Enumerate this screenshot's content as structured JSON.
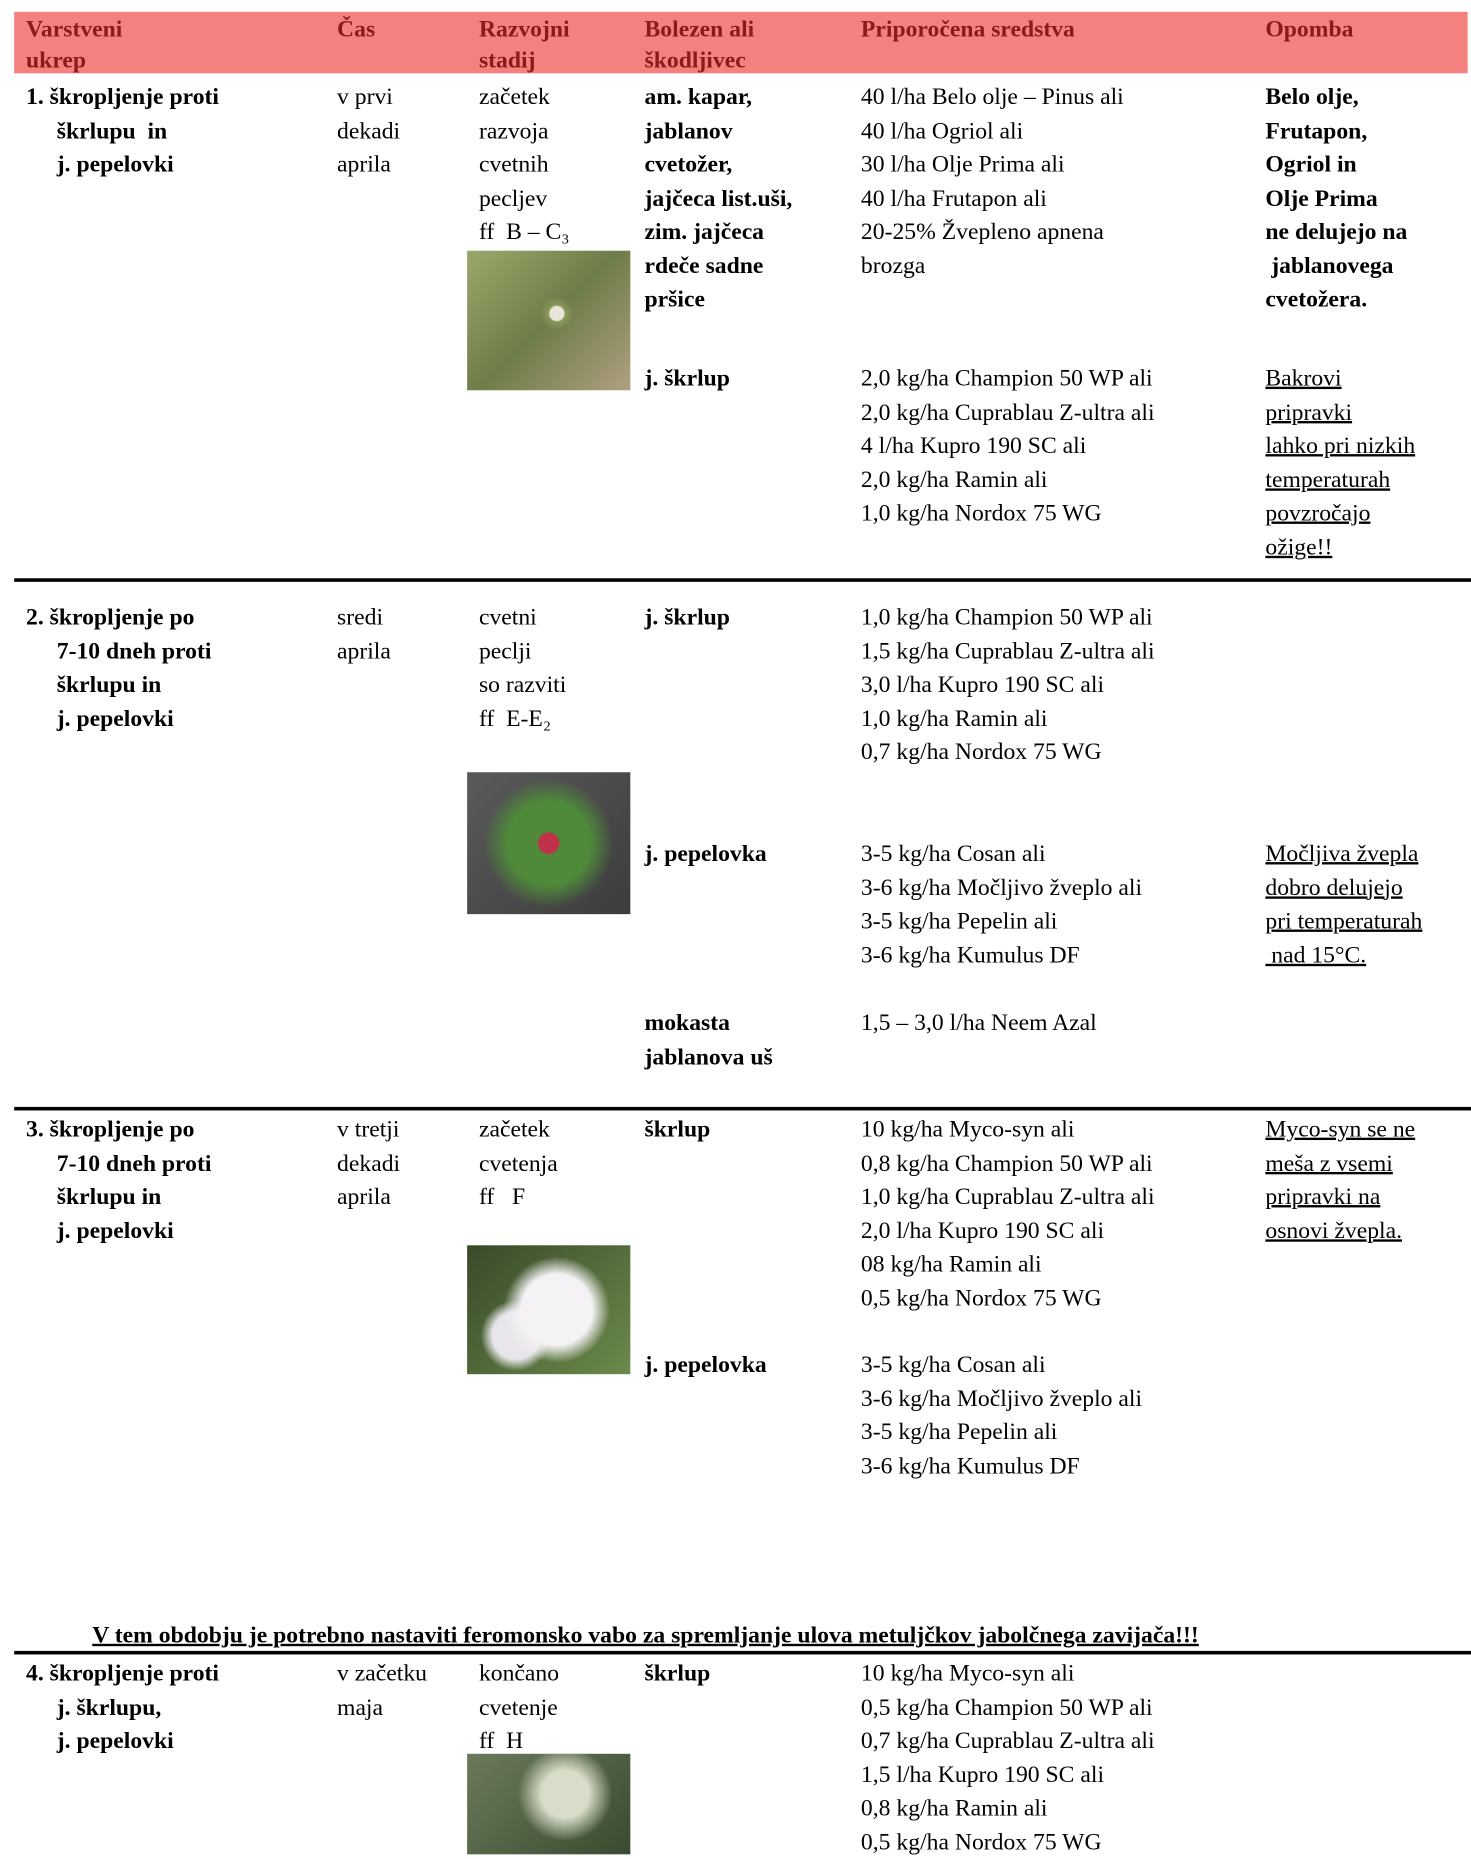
{
  "header": [
    [
      "Varstveni",
      "ukrep"
    ],
    [
      "Čas"
    ],
    [
      "Razvojni",
      "stadij"
    ],
    [
      "Bolezen ali",
      "škodljivec"
    ],
    [
      "Priporočena sredstva"
    ],
    [
      "Opomba"
    ]
  ],
  "sections": [
    {
      "measure": [
        "1. škropljenje proti",
        "škrlupu  in",
        "j. pepelovki"
      ],
      "time": [
        "v prvi",
        "dekadi",
        "aprila"
      ],
      "stage": [
        "začetek",
        "razvoja",
        "cvetnih",
        "pecljev",
        "ff  B – C₃"
      ],
      "blocks": [
        {
          "pest": [
            "am. kapar,",
            "jablanov",
            "cvetožer,",
            "jajčeca list.uši,",
            "zim. jajčeca",
            "rdeče sadne",
            "pršice"
          ],
          "products": [
            "40 l/ha Belo olje – Pinus ali",
            "40 l/ha Ogriol ali",
            "30 l/ha Olje Prima ali",
            "40 l/ha Frutapon ali",
            "20-25% Žvepleno apnena",
            "brozga"
          ],
          "note": [
            "Belo olje,",
            "Frutapon,",
            "Ogriol in",
            "Olje Prima",
            "ne delujejo na",
            " jablanovega",
            "cvetožera."
          ]
        },
        {
          "pest": [
            "j. škrlup"
          ],
          "products": [
            "2,0 kg/ha Champion 50 WP ali",
            "2,0 kg/ha Cuprablau Z-ultra ali",
            "4 l/ha Kupro 190 SC ali",
            "2,0 kg/ha Ramin ali",
            "1,0 kg/ha Nordox 75 WG"
          ],
          "note": [
            "Bakrovi",
            "pripravki",
            "lahko pri nizkih",
            "temperaturah",
            "povzročajo",
            "ožige!!"
          ]
        }
      ]
    },
    {
      "measure": [
        "2. škropljenje po",
        "7-10 dneh proti",
        "škrlupu in",
        "j. pepelovki"
      ],
      "time": [
        "sredi",
        "aprila"
      ],
      "stage": [
        "cvetni",
        "peclji",
        "so razviti",
        "ff  E-E₂"
      ],
      "blocks": [
        {
          "pest": [
            "j. škrlup"
          ],
          "products": [
            "1,0 kg/ha Champion 50 WP ali",
            "1,5 kg/ha Cuprablau Z-ultra ali",
            "3,0 l/ha Kupro 190 SC ali",
            "1,0 kg/ha Ramin ali",
            "0,7 kg/ha Nordox 75 WG"
          ],
          "note": []
        },
        {
          "pest": [
            "j. pepelovka"
          ],
          "products": [
            "3-5 kg/ha Cosan ali",
            "3-6 kg/ha Močljivo žveplo ali",
            "3-5 kg/ha Pepelin ali",
            "3-6 kg/ha Kumulus DF"
          ],
          "note": [
            "Močljiva žvepla",
            "dobro delujejo",
            "pri temperaturah",
            " nad 15°C."
          ]
        },
        {
          "pest": [
            "mokasta",
            "jablanova uš"
          ],
          "products": [
            "1,5 – 3,0 l/ha Neem Azal"
          ],
          "note": []
        }
      ]
    },
    {
      "measure": [
        "3. škropljenje po",
        "7-10 dneh proti",
        "škrlupu in",
        "j. pepelovki"
      ],
      "time": [
        "v tretji",
        "dekadi",
        "aprila"
      ],
      "stage": [
        "začetek",
        "cvetenja",
        "ff   F"
      ],
      "blocks": [
        {
          "pest": [
            "škrlup"
          ],
          "products": [
            "10 kg/ha Myco-syn ali",
            "0,8 kg/ha Champion 50 WP ali",
            "1,0 kg/ha Cuprablau Z-ultra ali",
            "2,0 l/ha Kupro 190 SC ali",
            "08 kg/ha Ramin ali",
            "0,5 kg/ha Nordox 75 WG"
          ],
          "note": [
            "Myco-syn se ne",
            "meša z vsemi",
            "pripravki na",
            "osnovi žvepla."
          ]
        },
        {
          "pest": [
            "j. pepelovka"
          ],
          "products": [
            "3-5 kg/ha Cosan ali",
            "3-6 kg/ha Močljivo žveplo ali",
            "3-5 kg/ha Pepelin ali",
            "3-6 kg/ha Kumulus DF"
          ],
          "note": []
        }
      ]
    },
    {
      "measure": [
        "4. škropljenje proti",
        "j. škrlupu,",
        "j. pepelovki"
      ],
      "time": [
        "v začetku",
        "maja"
      ],
      "stage": [
        "končano",
        "cvetenje",
        "ff  H"
      ],
      "blocks": [
        {
          "pest": [
            "škrlup"
          ],
          "products": [
            "10 kg/ha Myco-syn ali",
            "0,5 kg/ha Champion 50 WP ali",
            "0,7 kg/ha Cuprablau Z-ultra ali",
            "1,5 l/ha Kupro 190 SC ali",
            "0,8 kg/ha Ramin ali",
            "0,5 kg/ha Nordox 75 WG"
          ],
          "note": []
        }
      ]
    }
  ],
  "banner": "V tem obdobju je potrebno nastaviti feromonsko vabo za spremljanje ulova metuljčkov jabolčnega zavijača!!!"
}
